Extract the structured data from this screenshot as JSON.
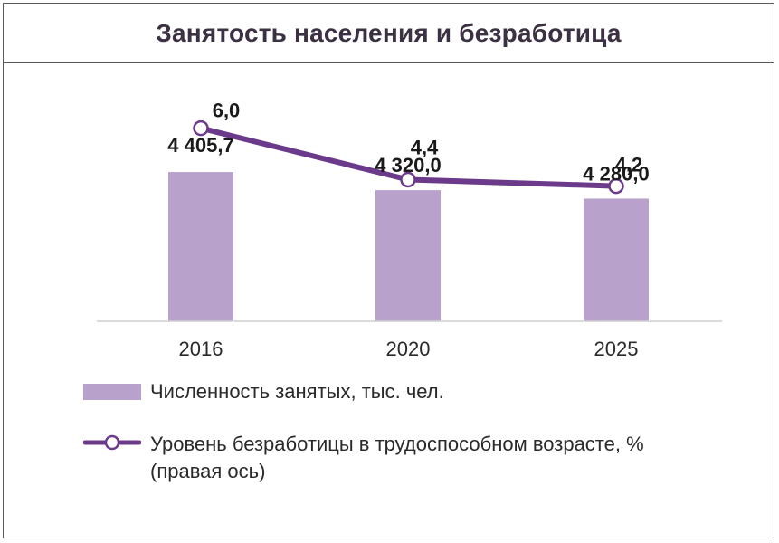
{
  "title": "Занятость населения и безработица",
  "colors": {
    "bar": "#b8a2cc",
    "line": "#6c3a8a",
    "marker_fill": "#ffffff",
    "axis": "#cfcfcf"
  },
  "legend": {
    "bars_label": "Численность занятых, тыс. чел.",
    "line_label": "Уровень безработицы в трудоспособном возрасте, %",
    "line_label_suffix": "(правая ось)"
  },
  "chart_data": {
    "type": "bar",
    "title": "Занятость населения и безработица",
    "categories": [
      "2016",
      "2020",
      "2025"
    ],
    "series": [
      {
        "name": "Численность занятых, тыс. чел.",
        "type": "bar",
        "axis": "left",
        "values": [
          4405.7,
          4320.0,
          4280.0
        ],
        "labels": [
          "4 405,7",
          "4 320,0",
          "4 280,0"
        ]
      },
      {
        "name": "Уровень безработицы в трудоспособном возрасте, % (правая ось)",
        "type": "line",
        "axis": "right",
        "values": [
          6.0,
          4.4,
          4.2
        ],
        "labels": [
          "6,0",
          "4,4",
          "4,2"
        ]
      }
    ],
    "grid": false,
    "legend_position": "bottom"
  }
}
